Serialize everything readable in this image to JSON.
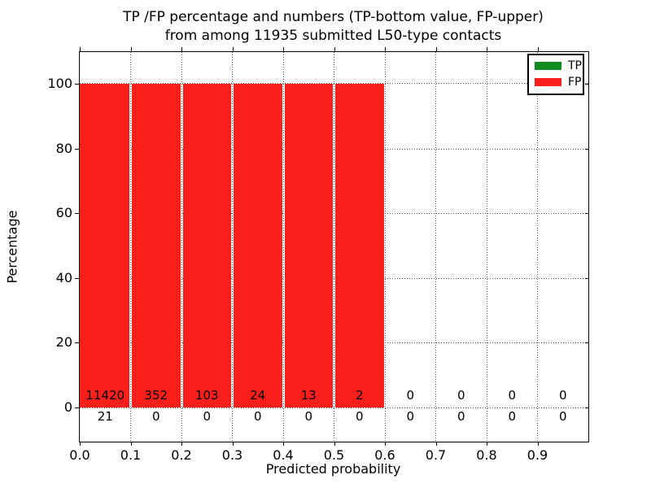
{
  "title": {
    "line1": "TP /FP percentage and numbers (TP-bottom value, FP-upper)",
    "line2": "from among 11935 submitted L50-type contacts"
  },
  "axes": {
    "xlabel": "Predicted probability",
    "ylabel": "Percentage",
    "x_tick_labels": [
      "0.0",
      "0.1",
      "0.2",
      "0.3",
      "0.4",
      "0.5",
      "0.6",
      "0.7",
      "0.8",
      "0.9"
    ],
    "y_tick_values": [
      0,
      20,
      40,
      60,
      80,
      100
    ]
  },
  "legend": {
    "position": "upper right",
    "items": [
      {
        "label": "TP",
        "color": "#128c20"
      },
      {
        "label": "FP",
        "color": "#fa1f1a"
      }
    ]
  },
  "chart_data": {
    "type": "bar",
    "stacked": true,
    "title": "TP /FP percentage and numbers (TP-bottom value, FP-upper) from among 11935 submitted L50-type contacts",
    "xlabel": "Predicted probability",
    "ylabel": "Percentage",
    "xlim": [
      0.0,
      1.0
    ],
    "ylim": [
      -10.5,
      109.5
    ],
    "grid": true,
    "bin_edges": [
      0.0,
      0.1,
      0.2,
      0.3,
      0.4,
      0.5,
      0.6,
      0.7,
      0.8,
      0.9,
      1.0
    ],
    "categories": [
      "0.0",
      "0.1",
      "0.2",
      "0.3",
      "0.4",
      "0.5",
      "0.6",
      "0.7",
      "0.8",
      "0.9"
    ],
    "series": [
      {
        "name": "TP",
        "color": "#128c20",
        "percentages": [
          0,
          0,
          0,
          0,
          0,
          0,
          0,
          0,
          0,
          0
        ],
        "counts": [
          21,
          0,
          0,
          0,
          0,
          0,
          0,
          0,
          0,
          0
        ]
      },
      {
        "name": "FP",
        "color": "#fa1f1a",
        "percentages": [
          100,
          100,
          100,
          100,
          100,
          100,
          0,
          0,
          0,
          0
        ],
        "counts": [
          11420,
          352,
          103,
          24,
          13,
          2,
          0,
          0,
          0,
          0
        ]
      }
    ],
    "total_submitted": 11935
  }
}
